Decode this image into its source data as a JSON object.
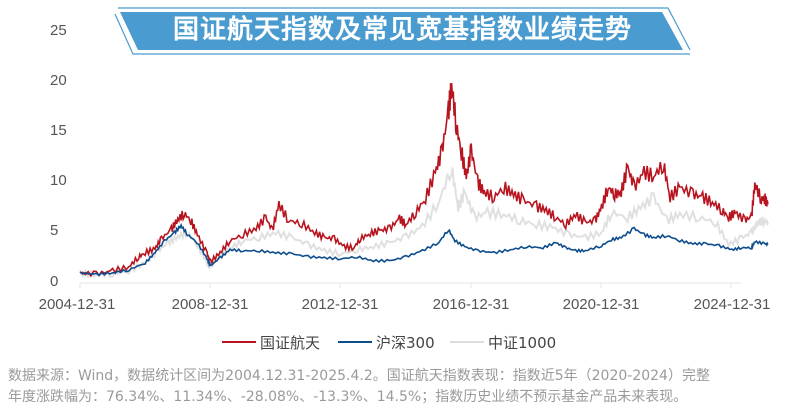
{
  "title": "国证航天指数及常见宽基指数业绩走势",
  "colors": {
    "banner_fill": "#4a9bd0",
    "banner_outline": "#4a9bd0",
    "series_1": "#b8141f",
    "series_2": "#0d4d8c",
    "series_3": "#e0e0e0",
    "axis": "#e6e6e6",
    "tick_text": "#555555",
    "footnote_text": "#9a9a9a"
  },
  "legend": [
    {
      "label": "国证航天",
      "color": "#b8141f"
    },
    {
      "label": "沪深300",
      "color": "#0d4d8c"
    },
    {
      "label": "中证1000",
      "color": "#e0e0e0"
    }
  ],
  "footnote": {
    "line1": "数据来源：Wind，数据统计区间为2004.12.31-2025.4.2。国证航天指数表现：指数近5年（2020-2024）完整",
    "line2": "年度涨跌幅为：76.34%、11.34%、-28.08%、-13.3%、14.5%；指数历史业绩不预示基金产品未来表现。"
  },
  "chart_data": {
    "type": "line",
    "title": "国证航天指数及常见宽基指数业绩走势",
    "xlabel": "",
    "ylabel": "",
    "ylim": [
      0,
      25
    ],
    "yticks": [
      "0",
      "5",
      "10",
      "15",
      "20",
      "25"
    ],
    "xticks": [
      "2004-12-31",
      "2008-12-31",
      "2012-12-31",
      "2016-12-31",
      "2020-12-31",
      "2024-12-31"
    ],
    "grid": false,
    "legend_position": "bottom",
    "x_unit": "years since 2004-12-31",
    "series": [
      {
        "name": "国证航天",
        "color": "#b8141f",
        "points": [
          [
            0,
            1.0
          ],
          [
            0.5,
            0.9
          ],
          [
            1.0,
            1.2
          ],
          [
            1.5,
            1.6
          ],
          [
            1.8,
            2.6
          ],
          [
            2.0,
            3.0
          ],
          [
            2.3,
            3.4
          ],
          [
            2.5,
            4.4
          ],
          [
            2.8,
            5.3
          ],
          [
            3.0,
            6.3
          ],
          [
            3.2,
            6.9
          ],
          [
            3.4,
            6.2
          ],
          [
            3.6,
            4.8
          ],
          [
            3.9,
            2.9
          ],
          [
            4.0,
            2.1
          ],
          [
            4.3,
            3.0
          ],
          [
            4.6,
            4.2
          ],
          [
            5.0,
            4.8
          ],
          [
            5.4,
            5.4
          ],
          [
            5.7,
            6.5
          ],
          [
            5.9,
            5.2
          ],
          [
            6.1,
            7.8
          ],
          [
            6.4,
            6.2
          ],
          [
            6.8,
            5.9
          ],
          [
            7.2,
            5.0
          ],
          [
            7.5,
            4.5
          ],
          [
            7.8,
            4.4
          ],
          [
            8.1,
            3.6
          ],
          [
            8.4,
            3.5
          ],
          [
            8.6,
            4.4
          ],
          [
            8.9,
            4.9
          ],
          [
            9.2,
            5.2
          ],
          [
            9.5,
            5.4
          ],
          [
            9.8,
            6.4
          ],
          [
            10.0,
            5.8
          ],
          [
            10.3,
            7.0
          ],
          [
            10.6,
            8.4
          ],
          [
            10.9,
            11.0
          ],
          [
            11.1,
            13.0
          ],
          [
            11.3,
            17.0
          ],
          [
            11.4,
            19.6
          ],
          [
            11.55,
            15.5
          ],
          [
            11.7,
            13.0
          ],
          [
            11.85,
            10.5
          ],
          [
            12.0,
            13.2
          ],
          [
            12.2,
            10.0
          ],
          [
            12.4,
            9.0
          ],
          [
            12.7,
            8.5
          ],
          [
            13.0,
            9.5
          ],
          [
            13.3,
            8.8
          ],
          [
            13.6,
            8.2
          ],
          [
            14.0,
            7.6
          ],
          [
            14.3,
            7.2
          ],
          [
            14.6,
            6.5
          ],
          [
            14.9,
            5.8
          ],
          [
            15.2,
            6.8
          ],
          [
            15.5,
            6.0
          ],
          [
            15.8,
            6.2
          ],
          [
            16.0,
            7.5
          ],
          [
            16.2,
            9.5
          ],
          [
            16.4,
            8.8
          ],
          [
            16.6,
            9.0
          ],
          [
            16.8,
            11.5
          ],
          [
            17.0,
            9.5
          ],
          [
            17.3,
            11.0
          ],
          [
            17.6,
            10.6
          ],
          [
            17.9,
            11.8
          ],
          [
            18.1,
            8.5
          ],
          [
            18.4,
            9.5
          ],
          [
            18.8,
            8.8
          ],
          [
            19.1,
            8.5
          ],
          [
            19.4,
            8.0
          ],
          [
            19.7,
            7.2
          ],
          [
            19.9,
            6.5
          ],
          [
            20.1,
            7.0
          ],
          [
            20.4,
            6.2
          ],
          [
            20.6,
            6.6
          ],
          [
            20.7,
            9.8
          ],
          [
            20.9,
            8.3
          ],
          [
            21.0,
            8.4
          ],
          [
            21.1,
            7.8
          ]
        ]
      },
      {
        "name": "沪深300",
        "color": "#0d4d8c",
        "points": [
          [
            0,
            1.0
          ],
          [
            0.5,
            0.85
          ],
          [
            1.0,
            1.0
          ],
          [
            1.5,
            1.3
          ],
          [
            2.0,
            2.0
          ],
          [
            2.3,
            3.0
          ],
          [
            2.6,
            4.2
          ],
          [
            2.9,
            5.0
          ],
          [
            3.1,
            5.7
          ],
          [
            3.3,
            4.8
          ],
          [
            3.6,
            4.0
          ],
          [
            3.9,
            2.4
          ],
          [
            4.0,
            1.7
          ],
          [
            4.3,
            2.5
          ],
          [
            4.6,
            3.3
          ],
          [
            5.0,
            3.2
          ],
          [
            5.5,
            3.2
          ],
          [
            6.0,
            3.0
          ],
          [
            6.5,
            2.9
          ],
          [
            7.0,
            2.6
          ],
          [
            7.5,
            2.5
          ],
          [
            8.0,
            2.4
          ],
          [
            8.5,
            2.6
          ],
          [
            9.0,
            2.2
          ],
          [
            9.5,
            2.2
          ],
          [
            10.0,
            2.6
          ],
          [
            10.5,
            3.2
          ],
          [
            11.0,
            4.0
          ],
          [
            11.3,
            5.3
          ],
          [
            11.5,
            4.2
          ],
          [
            11.8,
            3.6
          ],
          [
            12.2,
            3.2
          ],
          [
            12.7,
            3.0
          ],
          [
            13.2,
            3.3
          ],
          [
            13.7,
            3.6
          ],
          [
            14.2,
            3.5
          ],
          [
            14.6,
            4.0
          ],
          [
            14.9,
            3.5
          ],
          [
            15.2,
            3.2
          ],
          [
            15.5,
            3.2
          ],
          [
            16.0,
            3.7
          ],
          [
            16.3,
            4.3
          ],
          [
            16.6,
            4.5
          ],
          [
            17.0,
            5.4
          ],
          [
            17.3,
            4.8
          ],
          [
            17.6,
            4.5
          ],
          [
            18.0,
            4.7
          ],
          [
            18.4,
            4.2
          ],
          [
            18.8,
            3.9
          ],
          [
            19.2,
            3.9
          ],
          [
            19.6,
            3.7
          ],
          [
            20.0,
            3.3
          ],
          [
            20.3,
            3.5
          ],
          [
            20.6,
            3.5
          ],
          [
            20.7,
            4.1
          ],
          [
            21.0,
            3.9
          ],
          [
            21.1,
            3.8
          ]
        ]
      },
      {
        "name": "中证1000",
        "color": "#e0e0e0",
        "points": [
          [
            0,
            1.0
          ],
          [
            0.5,
            0.8
          ],
          [
            1.0,
            0.9
          ],
          [
            1.5,
            1.2
          ],
          [
            2.0,
            2.0
          ],
          [
            2.4,
            3.2
          ],
          [
            2.7,
            4.0
          ],
          [
            3.0,
            4.6
          ],
          [
            3.3,
            5.0
          ],
          [
            3.6,
            3.8
          ],
          [
            3.9,
            2.0
          ],
          [
            4.0,
            1.5
          ],
          [
            4.3,
            2.8
          ],
          [
            4.6,
            3.4
          ],
          [
            5.0,
            4.2
          ],
          [
            5.5,
            4.5
          ],
          [
            6.0,
            5.0
          ],
          [
            6.5,
            4.5
          ],
          [
            7.0,
            3.8
          ],
          [
            7.5,
            3.2
          ],
          [
            8.0,
            2.9
          ],
          [
            8.5,
            3.3
          ],
          [
            9.0,
            3.6
          ],
          [
            9.5,
            4.0
          ],
          [
            10.0,
            4.6
          ],
          [
            10.5,
            5.6
          ],
          [
            11.0,
            8.0
          ],
          [
            11.4,
            11.5
          ],
          [
            11.6,
            7.5
          ],
          [
            11.8,
            9.0
          ],
          [
            12.1,
            6.5
          ],
          [
            12.5,
            7.0
          ],
          [
            13.0,
            6.8
          ],
          [
            13.5,
            6.2
          ],
          [
            14.0,
            5.8
          ],
          [
            14.5,
            5.5
          ],
          [
            15.0,
            4.8
          ],
          [
            15.5,
            4.5
          ],
          [
            16.0,
            5.0
          ],
          [
            16.3,
            7.0
          ],
          [
            16.8,
            6.5
          ],
          [
            17.2,
            7.5
          ],
          [
            17.6,
            8.5
          ],
          [
            18.0,
            6.2
          ],
          [
            18.4,
            6.8
          ],
          [
            19.0,
            6.5
          ],
          [
            19.5,
            6.0
          ],
          [
            19.9,
            3.8
          ],
          [
            20.3,
            4.5
          ],
          [
            20.6,
            5.0
          ],
          [
            20.8,
            6.0
          ],
          [
            21.0,
            6.2
          ],
          [
            21.1,
            6.0
          ]
        ]
      }
    ]
  }
}
